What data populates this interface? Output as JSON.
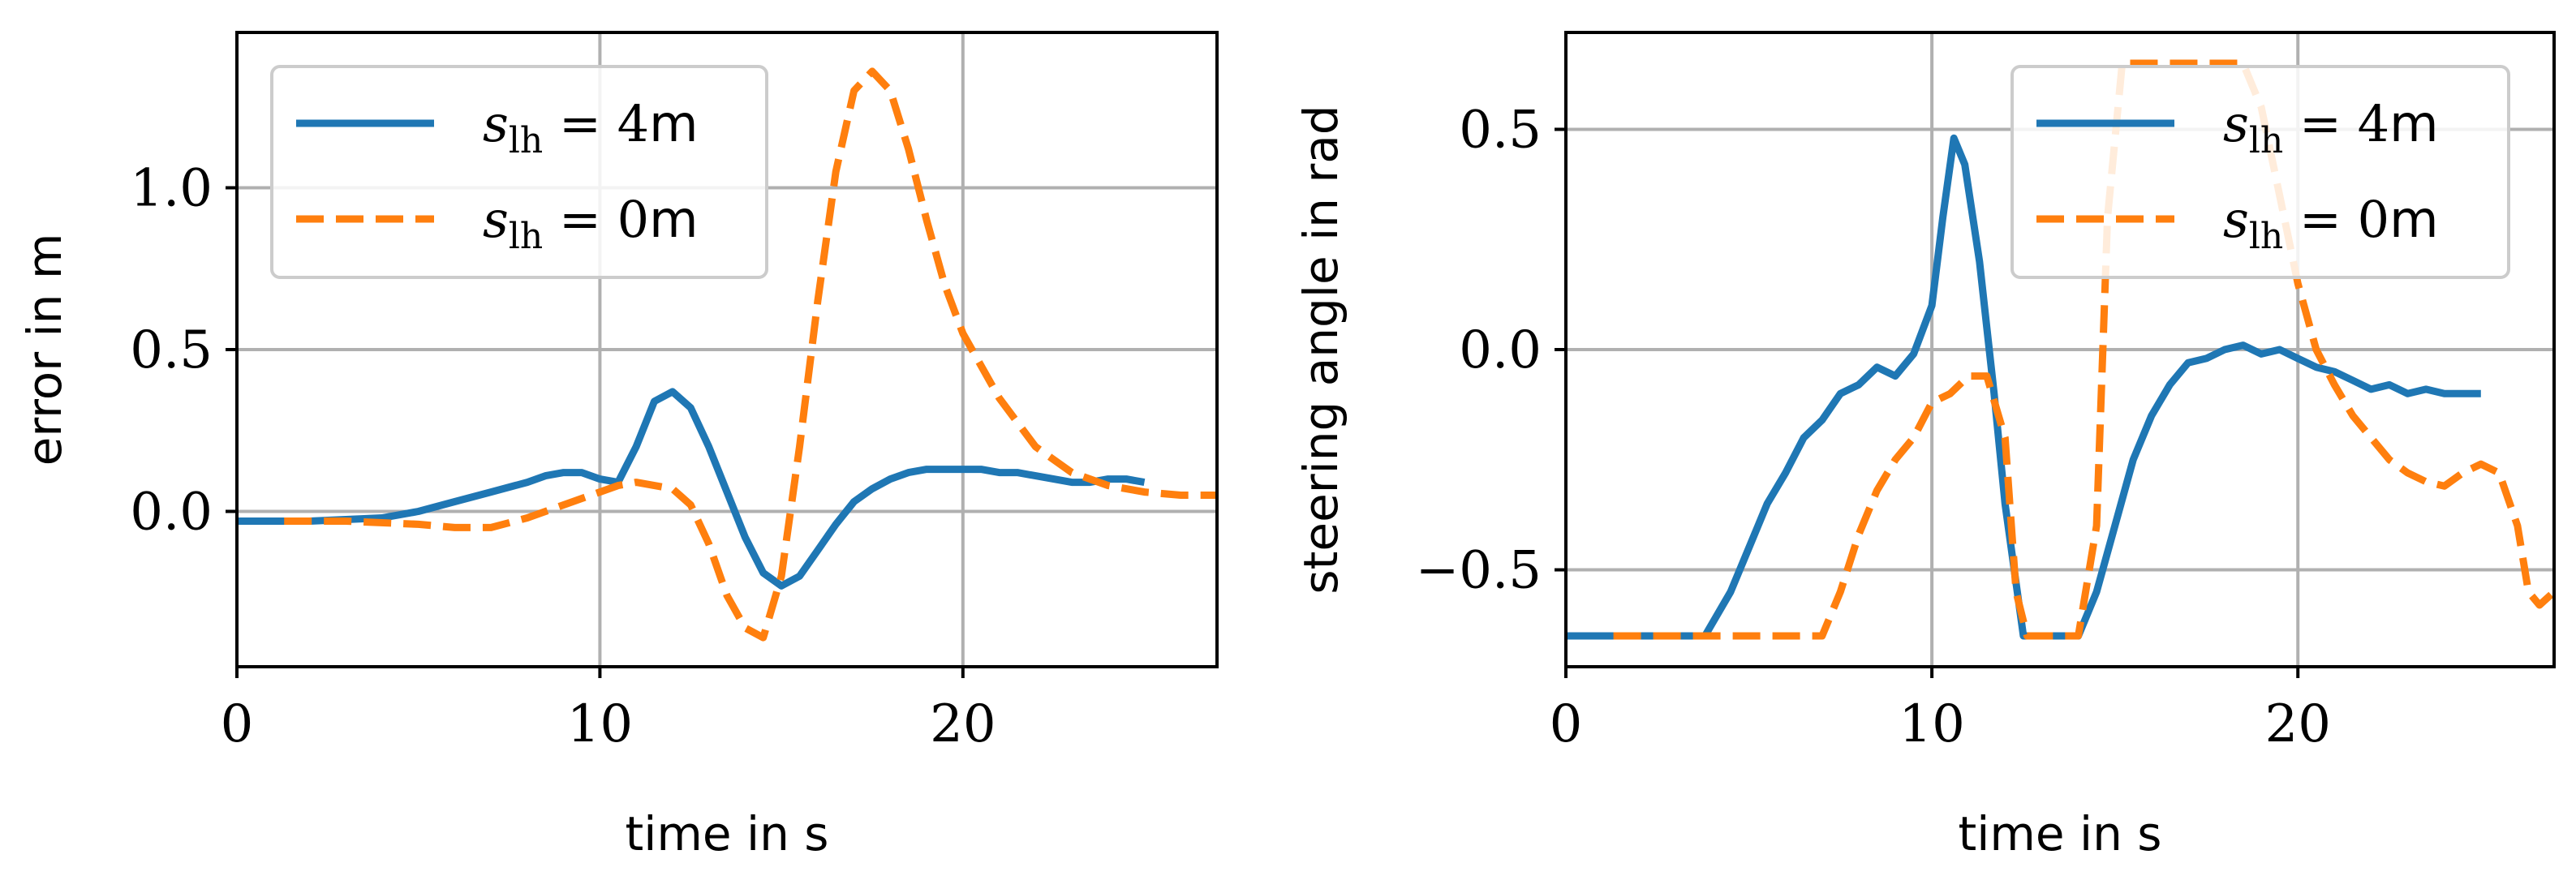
{
  "chart_data": [
    {
      "type": "line",
      "xlabel": "time in s",
      "ylabel": "error in m",
      "xlim": [
        0,
        27
      ],
      "ylim": [
        -0.48,
        1.48
      ],
      "xticks": [
        0,
        10,
        20
      ],
      "xtick_labels": [
        "0",
        "10",
        "20"
      ],
      "yticks": [
        0.0,
        0.5,
        1.0
      ],
      "ytick_labels": [
        "0.0",
        "0.5",
        "1.0"
      ],
      "grid": true,
      "legend": {
        "position": "upper-left",
        "entries": [
          {
            "symbol": "s",
            "subscript": "lh",
            "rest": " = 4",
            "unit": "m"
          },
          {
            "symbol": "s",
            "subscript": "lh",
            "rest": " = 0",
            "unit": "m"
          }
        ]
      },
      "series": [
        {
          "name": "s_lh = 4m",
          "color": "#1f77b4",
          "dash": "solid",
          "x": [
            0,
            2,
            4,
            5,
            6,
            7,
            8,
            8.5,
            9,
            9.5,
            10,
            10.5,
            11,
            11.5,
            12,
            12.5,
            13,
            13.5,
            14,
            14.5,
            15,
            15.5,
            16,
            16.5,
            17,
            17.5,
            18,
            18.5,
            19,
            19.5,
            20,
            20.5,
            21,
            21.5,
            22,
            22.5,
            23,
            23.5,
            24,
            24.5,
            25
          ],
          "y": [
            -0.03,
            -0.03,
            -0.02,
            0.0,
            0.03,
            0.06,
            0.09,
            0.11,
            0.12,
            0.12,
            0.1,
            0.09,
            0.2,
            0.34,
            0.37,
            0.32,
            0.2,
            0.06,
            -0.08,
            -0.19,
            -0.23,
            -0.2,
            -0.12,
            -0.04,
            0.03,
            0.07,
            0.1,
            0.12,
            0.13,
            0.13,
            0.13,
            0.13,
            0.12,
            0.12,
            0.11,
            0.1,
            0.09,
            0.09,
            0.1,
            0.1,
            0.09
          ]
        },
        {
          "name": "s_lh = 0m",
          "color": "#ff7f0e",
          "dash": "dashed",
          "x": [
            1.3,
            3,
            5,
            6,
            7,
            8,
            9,
            10,
            10.5,
            11,
            12,
            12.5,
            13,
            13.5,
            14,
            14.5,
            15,
            15.5,
            16,
            16.5,
            17,
            17.5,
            18,
            18.5,
            19,
            19.5,
            20,
            21,
            22,
            23,
            24,
            25,
            26,
            27
          ],
          "y": [
            -0.03,
            -0.03,
            -0.04,
            -0.05,
            -0.05,
            -0.02,
            0.02,
            0.06,
            0.08,
            0.09,
            0.07,
            0.02,
            -0.1,
            -0.26,
            -0.36,
            -0.39,
            -0.2,
            0.2,
            0.65,
            1.05,
            1.3,
            1.36,
            1.3,
            1.12,
            0.9,
            0.7,
            0.55,
            0.35,
            0.2,
            0.12,
            0.08,
            0.06,
            0.05,
            0.05
          ]
        }
      ]
    },
    {
      "type": "line",
      "xlabel": "time in s",
      "ylabel": "steering angle in rad",
      "xlim": [
        0,
        27
      ],
      "ylim": [
        -0.72,
        0.72
      ],
      "xticks": [
        0,
        10,
        20
      ],
      "xtick_labels": [
        "0",
        "10",
        "20"
      ],
      "yticks": [
        -0.5,
        0.0,
        0.5
      ],
      "ytick_labels": [
        "−0.5",
        "0.0",
        "0.5"
      ],
      "grid": true,
      "legend": {
        "position": "upper-right",
        "entries": [
          {
            "symbol": "s",
            "subscript": "lh",
            "rest": " = 4",
            "unit": "m"
          },
          {
            "symbol": "s",
            "subscript": "lh",
            "rest": " = 0",
            "unit": "m"
          }
        ]
      },
      "series": [
        {
          "name": "s_lh = 4m",
          "color": "#1f77b4",
          "dash": "solid",
          "x": [
            0,
            3.8,
            4.5,
            5,
            5.5,
            6,
            6.5,
            7,
            7.5,
            8,
            8.5,
            9,
            9.5,
            10,
            10.3,
            10.6,
            10.9,
            11.3,
            11.7,
            12,
            12.5,
            13,
            13.5,
            14,
            14.5,
            15,
            15.5,
            16,
            16.5,
            17,
            17.5,
            18,
            18.5,
            19,
            19.5,
            20,
            20.5,
            21,
            21.5,
            22,
            22.5,
            23,
            23.5,
            24,
            24.5,
            25
          ],
          "y": [
            -0.65,
            -0.65,
            -0.55,
            -0.45,
            -0.35,
            -0.28,
            -0.2,
            -0.16,
            -0.1,
            -0.08,
            -0.04,
            -0.06,
            -0.01,
            0.1,
            0.3,
            0.48,
            0.42,
            0.2,
            -0.1,
            -0.35,
            -0.65,
            -0.65,
            -0.65,
            -0.65,
            -0.55,
            -0.4,
            -0.25,
            -0.15,
            -0.08,
            -0.03,
            -0.02,
            0.0,
            0.01,
            -0.01,
            0.0,
            -0.02,
            -0.04,
            -0.05,
            -0.07,
            -0.09,
            -0.08,
            -0.1,
            -0.09,
            -0.1,
            -0.1,
            -0.1
          ]
        },
        {
          "name": "s_lh = 0m",
          "color": "#ff7f0e",
          "dash": "dashed",
          "x": [
            1.3,
            4,
            7,
            7.5,
            8,
            8.5,
            9,
            9.5,
            10,
            10.5,
            11,
            11.5,
            12,
            12.3,
            12.6,
            13,
            14,
            14.5,
            14.8,
            15.2,
            17,
            18.5,
            19,
            19.5,
            20,
            20.5,
            21,
            21.5,
            22,
            22.5,
            23,
            23.5,
            24,
            24.5,
            25,
            25.5,
            26,
            26.3,
            26.6,
            27
          ],
          "y": [
            -0.65,
            -0.65,
            -0.65,
            -0.55,
            -0.42,
            -0.32,
            -0.25,
            -0.2,
            -0.12,
            -0.1,
            -0.06,
            -0.06,
            -0.2,
            -0.55,
            -0.65,
            -0.65,
            -0.65,
            -0.4,
            0.3,
            0.65,
            0.65,
            0.65,
            0.55,
            0.35,
            0.15,
            0.0,
            -0.08,
            -0.15,
            -0.2,
            -0.25,
            -0.28,
            -0.3,
            -0.31,
            -0.28,
            -0.26,
            -0.28,
            -0.4,
            -0.55,
            -0.58,
            -0.55
          ]
        }
      ]
    }
  ]
}
